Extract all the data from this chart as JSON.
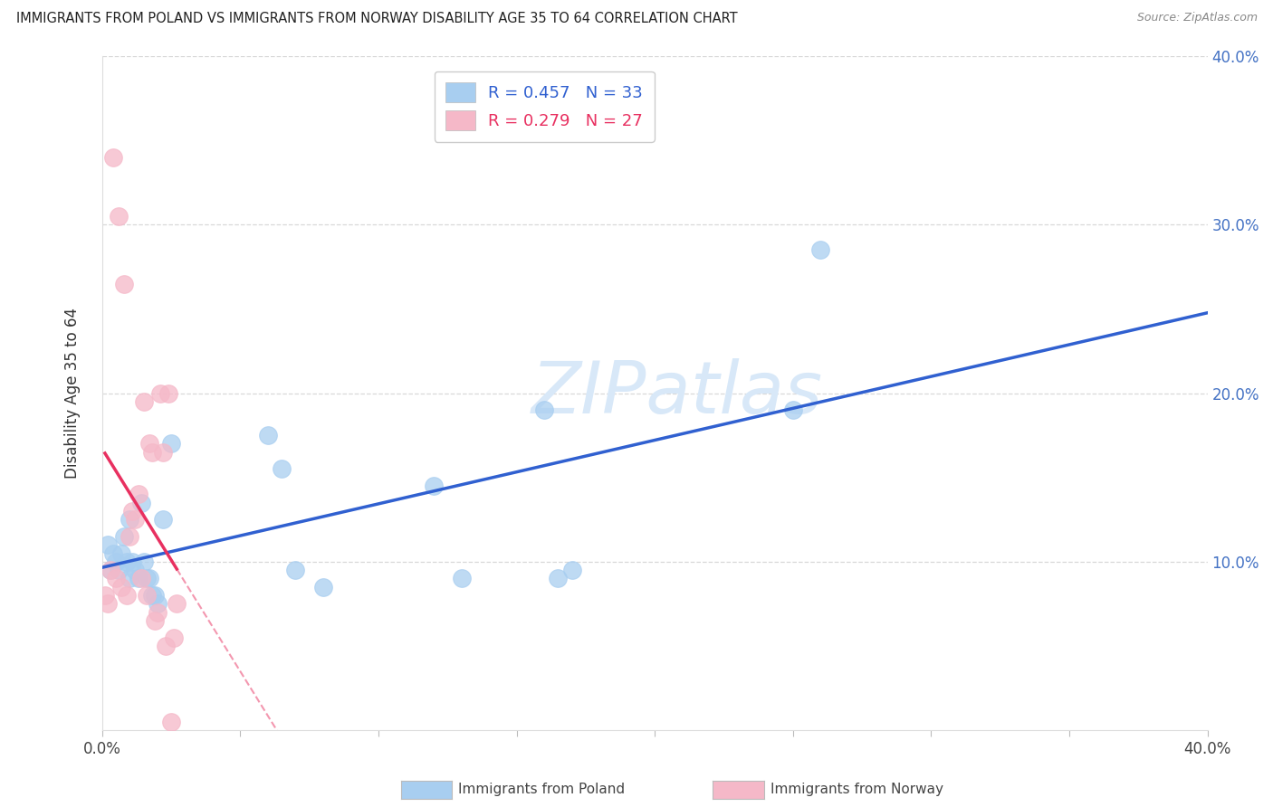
{
  "title": "IMMIGRANTS FROM POLAND VS IMMIGRANTS FROM NORWAY DISABILITY AGE 35 TO 64 CORRELATION CHART",
  "source": "Source: ZipAtlas.com",
  "ylabel": "Disability Age 35 to 64",
  "legend_label1": "Immigrants from Poland",
  "legend_label2": "Immigrants from Norway",
  "legend_r1": "R = 0.457",
  "legend_n1": "N = 33",
  "legend_r2": "R = 0.279",
  "legend_n2": "N = 27",
  "xlim": [
    0.0,
    0.4
  ],
  "ylim": [
    0.0,
    0.4
  ],
  "xticks": [
    0.0,
    0.05,
    0.1,
    0.15,
    0.2,
    0.25,
    0.3,
    0.35,
    0.4
  ],
  "yticks": [
    0.0,
    0.1,
    0.2,
    0.3,
    0.4
  ],
  "color_poland": "#A8CEF0",
  "color_norway": "#F5B8C8",
  "line_color_poland": "#3060D0",
  "line_color_norway": "#E83060",
  "watermark_color": "#D8E8F8",
  "background_color": "#ffffff",
  "grid_color": "#D8D8D8",
  "poland_x": [
    0.002,
    0.003,
    0.004,
    0.005,
    0.006,
    0.007,
    0.008,
    0.009,
    0.01,
    0.01,
    0.011,
    0.012,
    0.013,
    0.014,
    0.015,
    0.016,
    0.017,
    0.018,
    0.019,
    0.02,
    0.022,
    0.025,
    0.06,
    0.065,
    0.07,
    0.08,
    0.12,
    0.13,
    0.16,
    0.165,
    0.17,
    0.25,
    0.26
  ],
  "poland_y": [
    0.11,
    0.095,
    0.105,
    0.1,
    0.095,
    0.105,
    0.115,
    0.1,
    0.09,
    0.125,
    0.1,
    0.095,
    0.09,
    0.135,
    0.1,
    0.09,
    0.09,
    0.08,
    0.08,
    0.075,
    0.125,
    0.17,
    0.175,
    0.155,
    0.095,
    0.085,
    0.145,
    0.09,
    0.19,
    0.09,
    0.095,
    0.19,
    0.285
  ],
  "norway_x": [
    0.001,
    0.002,
    0.003,
    0.004,
    0.005,
    0.006,
    0.007,
    0.008,
    0.009,
    0.01,
    0.011,
    0.012,
    0.013,
    0.014,
    0.015,
    0.016,
    0.017,
    0.018,
    0.019,
    0.02,
    0.021,
    0.022,
    0.023,
    0.024,
    0.025,
    0.026,
    0.027
  ],
  "norway_y": [
    0.08,
    0.075,
    0.095,
    0.34,
    0.09,
    0.305,
    0.085,
    0.265,
    0.08,
    0.115,
    0.13,
    0.125,
    0.14,
    0.09,
    0.195,
    0.08,
    0.17,
    0.165,
    0.065,
    0.07,
    0.2,
    0.165,
    0.05,
    0.2,
    0.005,
    0.055,
    0.075
  ]
}
